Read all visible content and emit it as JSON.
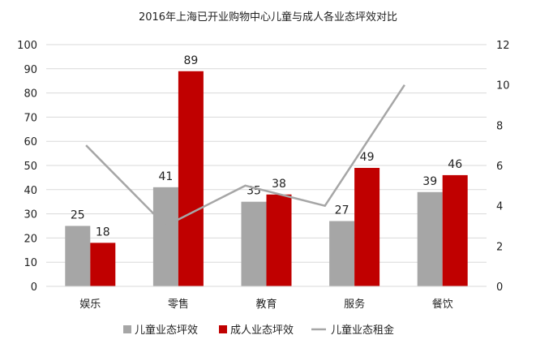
{
  "chart_data": {
    "type": "bar",
    "title": "2016年上海已开业购物中心儿童与成人各业态坪效对比",
    "categories": [
      "娱乐",
      "零售",
      "教育",
      "服务",
      "餐饮"
    ],
    "series": [
      {
        "name": "儿童业态坪效",
        "type": "bar",
        "axis": "left",
        "color": "#a6a6a6",
        "values": [
          25,
          41,
          35,
          27,
          39
        ]
      },
      {
        "name": "成人业态坪效",
        "type": "bar",
        "axis": "left",
        "color": "#c00000",
        "values": [
          18,
          89,
          38,
          49,
          46
        ]
      },
      {
        "name": "儿童业态租金",
        "type": "line",
        "axis": "right",
        "color": "#a6a6a6",
        "values": [
          7,
          3,
          5,
          4,
          10
        ]
      }
    ],
    "ylim": [
      0,
      100
    ],
    "yticks": [
      0,
      10,
      20,
      30,
      40,
      50,
      60,
      70,
      80,
      90,
      100
    ],
    "y2lim": [
      0,
      12
    ],
    "y2ticks": [
      0,
      2,
      4,
      6,
      8,
      10,
      12
    ],
    "grid": true,
    "legend": "bottom"
  }
}
